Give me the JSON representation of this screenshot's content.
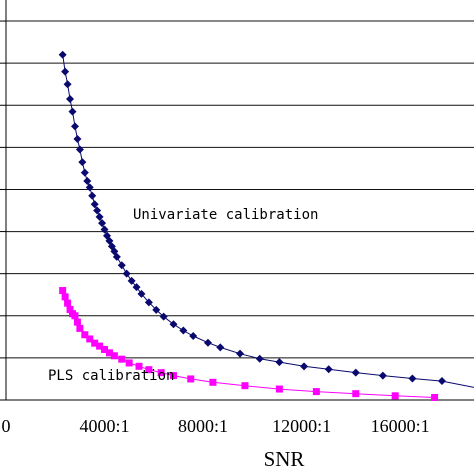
{
  "chart_data": {
    "type": "scatter",
    "xlabel": "SNR",
    "x_tick_labels": [
      "0",
      "4000:1",
      "8000:1",
      "12000:1",
      "16000:1"
    ],
    "x_tick_values": [
      0,
      4000,
      8000,
      12000,
      16000
    ],
    "xlim": [
      0,
      19000
    ],
    "y_gridlines": 9,
    "grid": "horizontal",
    "legend": "none",
    "series": [
      {
        "label": "Univariate calibration",
        "color": "#0a0a6e",
        "marker": "diamond",
        "x": [
          2300,
          2400,
          2500,
          2600,
          2700,
          2800,
          2900,
          3000,
          3100,
          3200,
          3300,
          3400,
          3500,
          3600,
          3700,
          3800,
          3900,
          4000,
          4100,
          4200,
          4300,
          4400,
          4500,
          4700,
          4900,
          5100,
          5300,
          5500,
          5800,
          6100,
          6400,
          6800,
          7200,
          7600,
          8200,
          8700,
          9500,
          10300,
          11100,
          12100,
          13100,
          14200,
          15300,
          16500,
          17700
        ],
        "y": [
          8.2,
          7.8,
          7.5,
          7.15,
          6.85,
          6.5,
          6.2,
          5.95,
          5.65,
          5.4,
          5.2,
          5.05,
          4.85,
          4.65,
          4.5,
          4.35,
          4.2,
          4.05,
          3.9,
          3.78,
          3.65,
          3.53,
          3.4,
          3.2,
          3.0,
          2.83,
          2.68,
          2.52,
          2.32,
          2.14,
          1.98,
          1.8,
          1.65,
          1.52,
          1.36,
          1.25,
          1.1,
          0.98,
          0.9,
          0.8,
          0.73,
          0.65,
          0.58,
          0.51,
          0.45
        ]
      },
      {
        "label": "PLS calibration",
        "color": "#ff00ff",
        "marker": "square",
        "x": [
          2300,
          2400,
          2500,
          2600,
          2700,
          2800,
          2900,
          3000,
          3200,
          3400,
          3600,
          3800,
          4000,
          4200,
          4400,
          4700,
          5000,
          5400,
          5800,
          6300,
          6800,
          7500,
          8400,
          9700,
          11100,
          12600,
          14200,
          15800,
          17400
        ],
        "y": [
          2.6,
          2.45,
          2.3,
          2.15,
          2.05,
          2.0,
          1.85,
          1.7,
          1.55,
          1.45,
          1.35,
          1.28,
          1.2,
          1.12,
          1.05,
          0.97,
          0.88,
          0.8,
          0.72,
          0.65,
          0.58,
          0.5,
          0.42,
          0.34,
          0.26,
          0.2,
          0.15,
          0.1,
          0.06
        ]
      }
    ],
    "annotations": [
      "Univariate calibration",
      "PLS calibration"
    ]
  }
}
